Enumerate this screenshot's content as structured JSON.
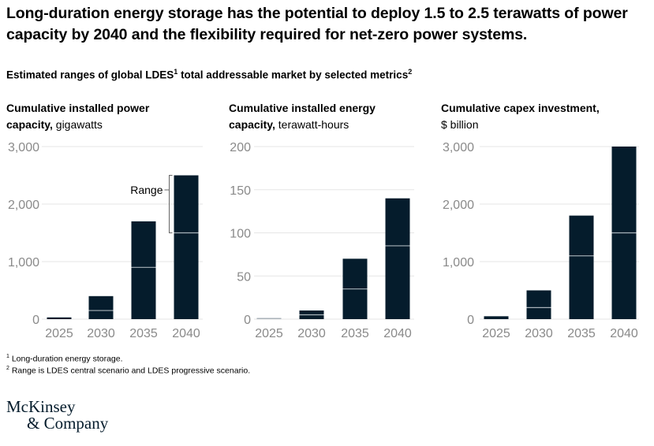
{
  "title": "Long-duration energy storage has the potential to deploy 1.5 to 2.5 terawatts of power capacity by 2040 and the flexibility required for net-zero power systems.",
  "subtitle": {
    "text": "Estimated ranges of global LDES",
    "sup1": "1",
    "text2": " total addressable market by selected metrics",
    "sup2": "2"
  },
  "footnotes": [
    {
      "sup": "1",
      "text": "Long-duration energy storage."
    },
    {
      "sup": "2",
      "text": "Range is LDES central scenario and LDES progressive scenario."
    }
  ],
  "logo": {
    "line1": "McKinsey",
    "line2": "& Company"
  },
  "colors": {
    "bar": "#051c2c",
    "divider": "#a9b2b9",
    "grid": "#e6e6e6",
    "tick": "#8a8a8a"
  },
  "chart_data": [
    {
      "type": "bar",
      "title_bold": "Cumulative installed power capacity,",
      "title_unit": "gigawatts",
      "categories": [
        "2025",
        "2030",
        "2035",
        "2040"
      ],
      "series": [
        {
          "name": "LDES central scenario",
          "values": [
            15,
            150,
            900,
            1500
          ]
        },
        {
          "name": "LDES progressive scenario",
          "values": [
            30,
            400,
            1700,
            2500
          ]
        }
      ],
      "yticks": [
        "0",
        "1,000",
        "2,000",
        "3,000"
      ],
      "ylim": [
        0,
        3000
      ],
      "annotation": "Range",
      "grid": true
    },
    {
      "type": "bar",
      "title_bold": "Cumulative installed energy capacity,",
      "title_unit": "terawatt-hours",
      "categories": [
        "2025",
        "2030",
        "2035",
        "2040"
      ],
      "series": [
        {
          "name": "LDES central scenario",
          "values": [
            0.5,
            5,
            35,
            85
          ]
        },
        {
          "name": "LDES progressive scenario",
          "values": [
            1,
            10,
            70,
            140
          ]
        }
      ],
      "yticks": [
        "0",
        "50",
        "100",
        "150",
        "200"
      ],
      "ylim": [
        0,
        200
      ],
      "grid": true
    },
    {
      "type": "bar",
      "title_bold": "Cumulative capex investment,",
      "title_unit": "$ billion",
      "categories": [
        "2025",
        "2030",
        "2035",
        "2040"
      ],
      "series": [
        {
          "name": "LDES central scenario",
          "values": [
            20,
            200,
            1100,
            1500
          ]
        },
        {
          "name": "LDES progressive scenario",
          "values": [
            50,
            500,
            1800,
            3000
          ]
        }
      ],
      "yticks": [
        "0",
        "1,000",
        "2,000",
        "3,000"
      ],
      "ylim": [
        0,
        3000
      ],
      "grid": true
    }
  ]
}
